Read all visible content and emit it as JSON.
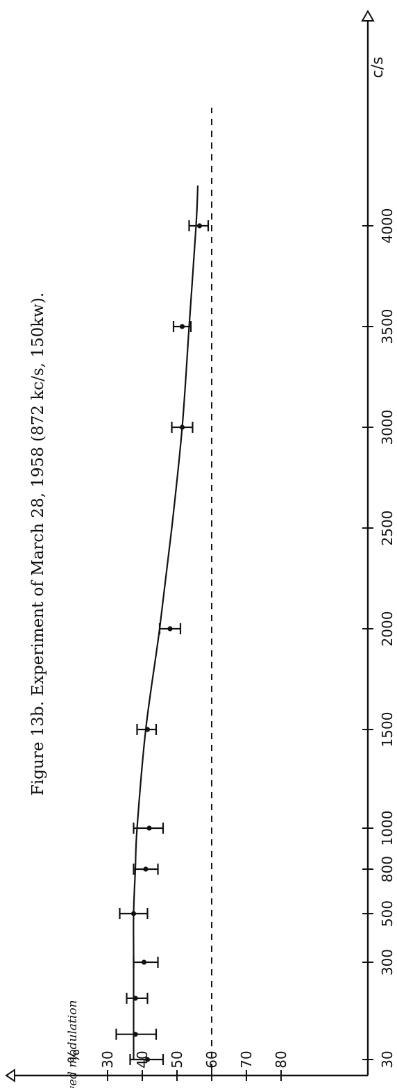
{
  "chart_data": {
    "type": "scatter",
    "title": "Figure 13b.  Experiment of March 28, 1958 (872 kc/s, 150kw).",
    "ylabel": "Received modulation",
    "y_unit": "%",
    "x_unit": "c/s",
    "x_ticks": [
      "30",
      "300",
      "500",
      "800",
      "1000",
      "1500",
      "2000",
      "2500",
      "3000",
      "3500",
      "4000"
    ],
    "y_ticks": [
      "30",
      "40",
      "50",
      "60",
      "70",
      "80"
    ],
    "ylim": [
      30,
      85
    ],
    "reference_line": {
      "style": "dashed",
      "y": 60
    },
    "grid": false,
    "points": [
      {
        "x": 30,
        "y": 41.5,
        "err_low": 36.5,
        "err_high": 46
      },
      {
        "x": 100,
        "y": 38,
        "err_low": 32.5,
        "err_high": 44
      },
      {
        "x": 200,
        "y": 38,
        "err_low": 35.5,
        "err_high": 41.5
      },
      {
        "x": 300,
        "y": 40.5,
        "err_low": 37.5,
        "err_high": 44.5
      },
      {
        "x": 500,
        "y": 37.5,
        "err_low": 33.5,
        "err_high": 41.5
      },
      {
        "x": 800,
        "y": 41,
        "err_low": 37.5,
        "err_high": 44.5
      },
      {
        "x": 1000,
        "y": 42,
        "err_low": 37.5,
        "err_high": 46
      },
      {
        "x": 1500,
        "y": 41.5,
        "err_low": 38.5,
        "err_high": 44
      },
      {
        "x": 2000,
        "y": 48,
        "err_low": 45,
        "err_high": 51
      },
      {
        "x": 3000,
        "y": 51.5,
        "err_low": 48.5,
        "err_high": 54.5
      },
      {
        "x": 3500,
        "y": 51.5,
        "err_low": 49,
        "err_high": 54
      },
      {
        "x": 4000,
        "y": 56.5,
        "err_low": 53.5,
        "err_high": 59
      }
    ],
    "fitted_curve": [
      {
        "x": 30,
        "y": 37.5
      },
      {
        "x": 300,
        "y": 37.5
      },
      {
        "x": 500,
        "y": 37.5
      },
      {
        "x": 800,
        "y": 38
      },
      {
        "x": 1000,
        "y": 38.5
      },
      {
        "x": 1500,
        "y": 41
      },
      {
        "x": 2000,
        "y": 45
      },
      {
        "x": 2500,
        "y": 48.5
      },
      {
        "x": 3000,
        "y": 51.5
      },
      {
        "x": 3500,
        "y": 53.5
      },
      {
        "x": 4000,
        "y": 55.5
      },
      {
        "x": 4200,
        "y": 56
      }
    ]
  }
}
